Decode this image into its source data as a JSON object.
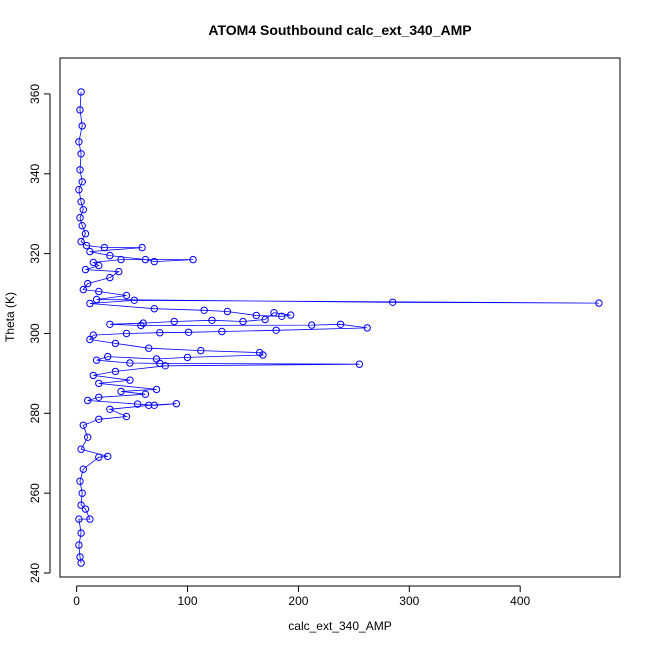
{
  "chart_data": {
    "type": "scatter",
    "title": "ATOM4 Southbound calc_ext_340_AMP",
    "xlabel": "calc_ext_340_AMP",
    "ylabel": "Theta (K)",
    "xlim": [
      -15,
      490
    ],
    "ylim": [
      239,
      369
    ],
    "xticks": [
      0,
      100,
      200,
      300,
      400
    ],
    "yticks": [
      240,
      260,
      280,
      300,
      320,
      340,
      360
    ],
    "grid": false,
    "legend": "none",
    "series": [
      {
        "color": "#0000ff",
        "marker": "open-circle",
        "line": true,
        "points": [
          [
            4,
            360.5
          ],
          [
            3,
            356
          ],
          [
            5,
            352
          ],
          [
            2,
            348
          ],
          [
            4,
            345
          ],
          [
            3,
            341
          ],
          [
            5,
            338
          ],
          [
            2,
            336
          ],
          [
            4,
            333
          ],
          [
            6,
            331
          ],
          [
            3,
            329
          ],
          [
            5,
            327
          ],
          [
            8,
            325
          ],
          [
            4,
            323
          ],
          [
            9,
            322
          ],
          [
            25,
            321.5
          ],
          [
            59,
            321.5
          ],
          [
            12,
            320.5
          ],
          [
            30,
            319.5
          ],
          [
            62,
            318.5
          ],
          [
            70,
            318
          ],
          [
            105,
            318.5
          ],
          [
            40,
            318.5
          ],
          [
            15,
            317.8
          ],
          [
            20,
            317
          ],
          [
            8,
            316
          ],
          [
            38,
            315.5
          ],
          [
            30,
            314
          ],
          [
            10,
            312.5
          ],
          [
            6,
            311
          ],
          [
            20,
            310.5
          ],
          [
            45,
            309.5
          ],
          [
            18,
            308.5
          ],
          [
            285,
            307.8
          ],
          [
            471,
            307.6
          ],
          [
            52,
            308.3
          ],
          [
            12,
            307.5
          ],
          [
            70,
            306.2
          ],
          [
            115,
            305.8
          ],
          [
            136,
            305.5
          ],
          [
            162,
            304.5
          ],
          [
            185,
            304.3
          ],
          [
            193,
            304.6
          ],
          [
            178,
            305.2
          ],
          [
            170,
            303.5
          ],
          [
            150,
            303
          ],
          [
            122,
            303.3
          ],
          [
            88,
            303
          ],
          [
            60,
            302.6
          ],
          [
            30,
            302.3
          ],
          [
            58,
            302
          ],
          [
            212,
            302.1
          ],
          [
            238,
            302.3
          ],
          [
            262,
            301.4
          ],
          [
            180,
            300.8
          ],
          [
            131,
            300.5
          ],
          [
            101,
            300.3
          ],
          [
            75,
            300.2
          ],
          [
            45,
            300
          ],
          [
            15,
            299.6
          ],
          [
            12,
            298.5
          ],
          [
            35,
            297.5
          ],
          [
            65,
            296.3
          ],
          [
            112,
            295.7
          ],
          [
            165,
            295.2
          ],
          [
            168,
            294.6
          ],
          [
            100,
            294
          ],
          [
            72,
            293.6
          ],
          [
            28,
            294.2
          ],
          [
            18,
            293.3
          ],
          [
            48,
            292.6
          ],
          [
            75,
            292.5
          ],
          [
            255,
            292.3
          ],
          [
            80,
            291.9
          ],
          [
            35,
            290.5
          ],
          [
            15,
            289.5
          ],
          [
            48,
            288.3
          ],
          [
            20,
            287.5
          ],
          [
            72,
            286
          ],
          [
            40,
            285.5
          ],
          [
            62,
            284.8
          ],
          [
            20,
            284
          ],
          [
            10,
            283.2
          ],
          [
            55,
            282.3
          ],
          [
            70,
            282
          ],
          [
            90,
            282.4
          ],
          [
            65,
            282
          ],
          [
            30,
            281
          ],
          [
            45,
            279.2
          ],
          [
            20,
            278.5
          ],
          [
            6,
            277
          ],
          [
            10,
            274
          ],
          [
            4,
            271
          ],
          [
            28,
            269.2
          ],
          [
            20,
            269
          ],
          [
            6,
            266
          ],
          [
            3,
            263
          ],
          [
            5,
            260
          ],
          [
            4,
            257
          ],
          [
            8,
            256
          ],
          [
            12,
            253.5
          ],
          [
            2,
            253.5
          ],
          [
            4,
            250
          ],
          [
            2,
            247
          ],
          [
            3,
            244
          ],
          [
            4,
            242.5
          ]
        ]
      }
    ]
  }
}
